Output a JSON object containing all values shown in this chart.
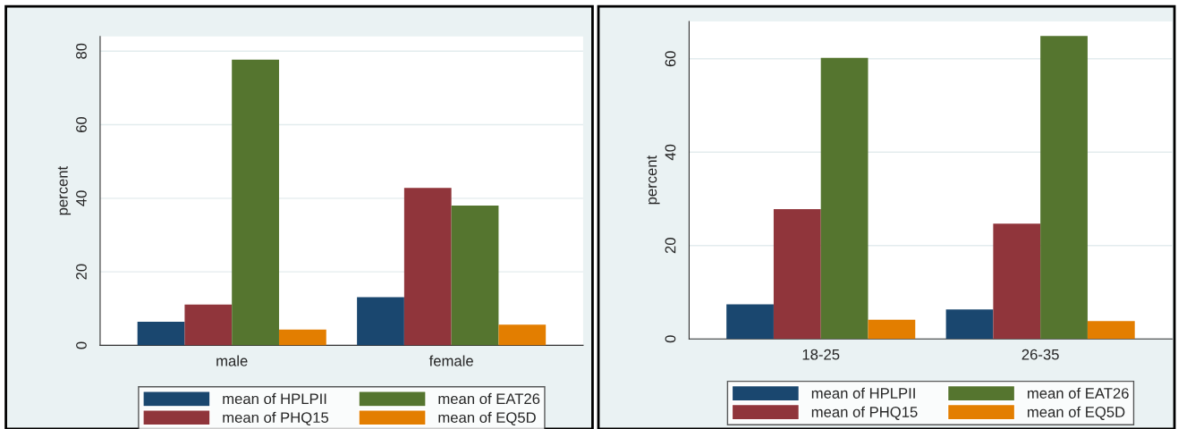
{
  "chart_data": [
    {
      "type": "bar",
      "ylabel": "percent",
      "categories": [
        "male",
        "female"
      ],
      "ylim": [
        0,
        84
      ],
      "yticks": [
        0,
        20,
        40,
        60,
        80
      ],
      "grid": "y",
      "legend": "bottom",
      "series": [
        {
          "name": "mean of HPLPII",
          "color": "#1a476f",
          "values": [
            6.4,
            13.1
          ]
        },
        {
          "name": "mean of PHQ15",
          "color": "#90353b",
          "values": [
            11.1,
            42.8
          ]
        },
        {
          "name": "mean of EAT26",
          "color": "#55752f",
          "values": [
            77.7,
            38.0
          ]
        },
        {
          "name": "mean of EQ5D",
          "color": "#e37e00",
          "values": [
            4.3,
            5.6
          ]
        }
      ]
    },
    {
      "type": "bar",
      "ylabel": "percent",
      "categories": [
        "18-25",
        "26-35"
      ],
      "ylim": [
        0,
        68
      ],
      "yticks": [
        0,
        20,
        40,
        60
      ],
      "grid": "y",
      "legend": "bottom",
      "series": [
        {
          "name": "mean of HPLPII",
          "color": "#1a476f",
          "values": [
            7.4,
            6.3
          ]
        },
        {
          "name": "mean of PHQ15",
          "color": "#90353b",
          "values": [
            27.8,
            24.7
          ]
        },
        {
          "name": "mean of EAT26",
          "color": "#55752f",
          "values": [
            60.2,
            64.9
          ]
        },
        {
          "name": "mean of EQ5D",
          "color": "#e37e00",
          "values": [
            4.1,
            3.8
          ]
        }
      ]
    }
  ]
}
